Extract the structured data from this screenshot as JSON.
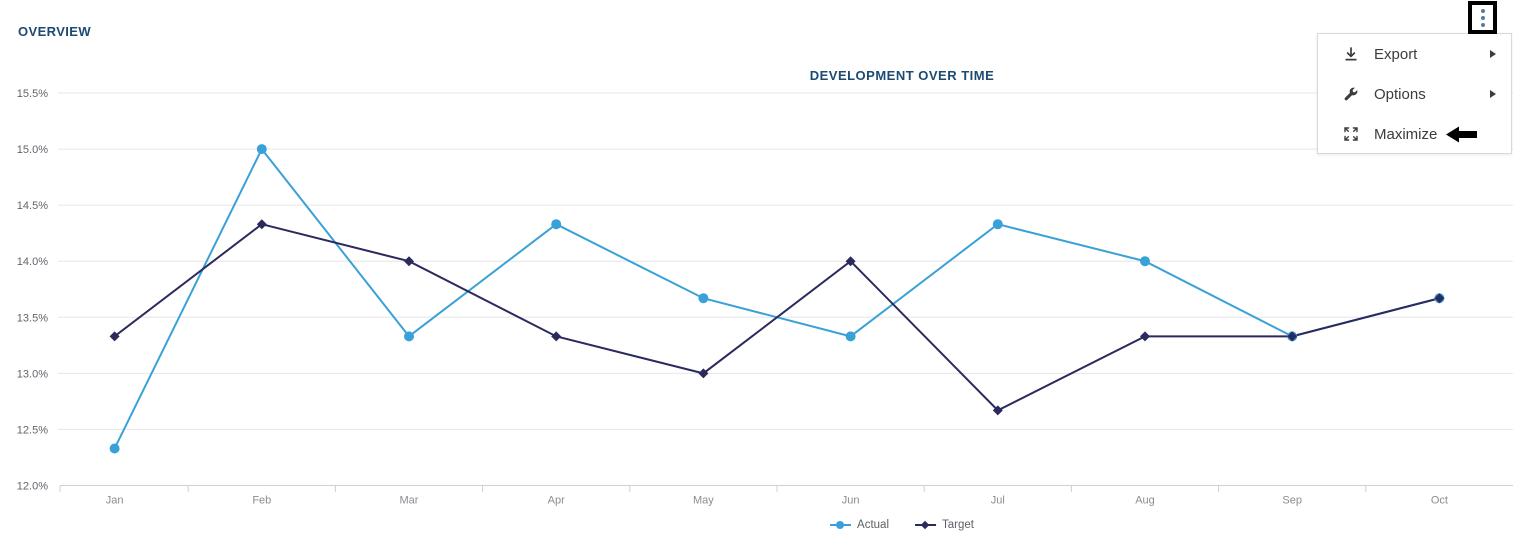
{
  "page": {
    "overview_label": "OVERVIEW"
  },
  "context_menu": {
    "items": [
      {
        "label": "Export",
        "icon": "download-icon",
        "has_submenu": true
      },
      {
        "label": "Options",
        "icon": "wrench-icon",
        "has_submenu": true
      },
      {
        "label": "Maximize",
        "icon": "maximize-icon",
        "has_submenu": false,
        "annotated_with_arrow": true
      }
    ]
  },
  "chart_data": {
    "type": "line",
    "title": "DEVELOPMENT OVER TIME",
    "categories": [
      "Jan",
      "Feb",
      "Mar",
      "Apr",
      "May",
      "Jun",
      "Jul",
      "Aug",
      "Sep",
      "Oct"
    ],
    "series": [
      {
        "name": "Actual",
        "color": "#3aa1d8",
        "marker": "circle",
        "values": [
          12.33,
          15.0,
          13.33,
          14.33,
          13.67,
          13.33,
          14.33,
          14.0,
          13.33,
          13.67
        ]
      },
      {
        "name": "Target",
        "color": "#2b2a5e",
        "marker": "diamond",
        "values": [
          13.33,
          14.33,
          14.0,
          13.33,
          13.0,
          14.0,
          12.67,
          13.33,
          13.33,
          13.67
        ]
      }
    ],
    "ylim": [
      12.0,
      15.5
    ],
    "ytick_step": 0.5,
    "yticks": [
      "12.0%",
      "12.5%",
      "13.0%",
      "13.5%",
      "14.0%",
      "14.5%",
      "15.0%",
      "15.5%"
    ],
    "grid": "horizontal",
    "legend_position": "bottom"
  },
  "colors": {
    "accent_title": "#1c4a72",
    "grid_line": "#e6e6e9",
    "axis_line": "#cfd0d4",
    "y_label": "#63646c",
    "x_label": "#8b8b93",
    "menu_text": "#3c3c3e",
    "kebab_dots": "#567a9d",
    "annotation": "#000000"
  }
}
